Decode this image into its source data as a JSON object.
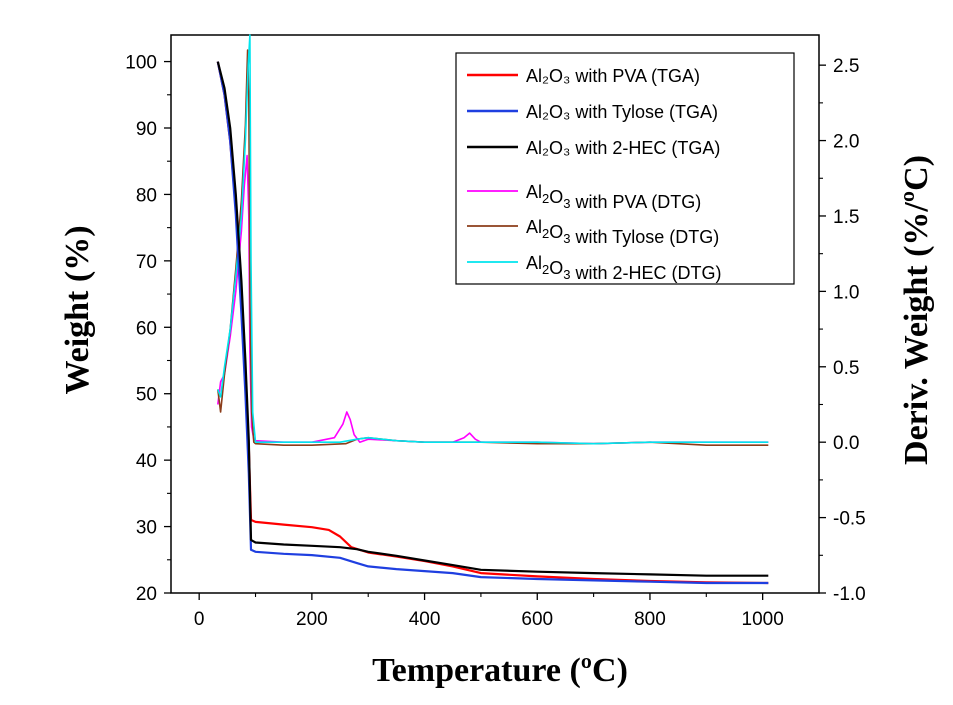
{
  "chart_data": {
    "type": "line",
    "xlabel": "Temperature (ºC)",
    "ylabel": "Weight (%)",
    "y2label": "Deriv. Weight (%/ºC)",
    "xlim": [
      -50,
      1100
    ],
    "ylim": [
      20,
      104
    ],
    "y2lim": [
      -1.0,
      2.7
    ],
    "x_ticks": [
      0,
      200,
      400,
      600,
      800,
      1000
    ],
    "y_ticks": [
      20,
      30,
      40,
      50,
      60,
      70,
      80,
      90,
      100
    ],
    "y2_ticks": [
      -1.0,
      -0.5,
      0.0,
      0.5,
      1.0,
      1.5,
      2.0,
      2.5
    ],
    "y2_tick_labels": [
      "-1.0",
      "-0.5",
      "0.0",
      "0.5",
      "1.0",
      "1.5",
      "2.0",
      "2.5"
    ],
    "legend_position": "top-right",
    "series": [
      {
        "name": "Al₂O₃ with PVA (TGA)",
        "axis": "left",
        "color": "#ff0000",
        "x": [
          33,
          45,
          55,
          65,
          75,
          82,
          88,
          92,
          100,
          150,
          200,
          230,
          250,
          270,
          300,
          350,
          400,
          450,
          500,
          600,
          700,
          800,
          900,
          1010
        ],
        "y": [
          100,
          95,
          88,
          78,
          64,
          52,
          42,
          31,
          30.7,
          30.3,
          29.9,
          29.5,
          28.5,
          26.9,
          26.1,
          25.5,
          24.8,
          24.0,
          23.0,
          22.5,
          22.1,
          21.8,
          21.6,
          21.5
        ]
      },
      {
        "name": "Al₂O₃ with Tylose (TGA)",
        "axis": "left",
        "color": "#1f3fe0",
        "x": [
          33,
          45,
          55,
          65,
          75,
          82,
          88,
          92,
          100,
          150,
          200,
          250,
          280,
          300,
          350,
          400,
          450,
          500,
          600,
          700,
          800,
          900,
          1010
        ],
        "y": [
          100,
          95,
          88,
          77,
          62,
          50,
          38,
          26.5,
          26.2,
          25.9,
          25.7,
          25.3,
          24.5,
          24.0,
          23.6,
          23.3,
          23.0,
          22.4,
          22.1,
          21.9,
          21.7,
          21.5,
          21.5
        ]
      },
      {
        "name": "Al₂O₃ with 2-HEC (TGA)",
        "axis": "left",
        "color": "#000000",
        "x": [
          33,
          45,
          55,
          65,
          75,
          82,
          88,
          92,
          100,
          150,
          200,
          250,
          280,
          300,
          350,
          400,
          450,
          500,
          600,
          700,
          800,
          900,
          1010
        ],
        "y": [
          100,
          96,
          90,
          80,
          67,
          55,
          43,
          28,
          27.6,
          27.3,
          27.1,
          26.9,
          26.6,
          26.2,
          25.6,
          24.9,
          24.2,
          23.5,
          23.2,
          23.0,
          22.8,
          22.6,
          22.6
        ]
      },
      {
        "name": "Al₂O₃ with PVA (DTG)",
        "axis": "right",
        "color": "#ff00ff",
        "x": [
          33,
          38,
          45,
          55,
          65,
          75,
          80,
          85,
          88,
          90,
          93,
          97,
          100,
          150,
          200,
          240,
          255,
          262,
          268,
          275,
          285,
          300,
          350,
          400,
          450,
          470,
          480,
          490,
          500,
          600,
          700,
          800,
          900,
          1010
        ],
        "y": [
          0.25,
          0.4,
          0.45,
          0.7,
          1.0,
          1.4,
          1.7,
          1.9,
          1.5,
          0.6,
          0.1,
          0.02,
          0.01,
          0.0,
          0.0,
          0.03,
          0.12,
          0.2,
          0.15,
          0.05,
          0.0,
          0.02,
          0.01,
          0.0,
          0.0,
          0.03,
          0.06,
          0.02,
          0.0,
          0.0,
          -0.01,
          0.0,
          0.0,
          0.0
        ]
      },
      {
        "name": "Al₂O₃ with Tylose (DTG)",
        "axis": "right",
        "color": "#8b3d1a",
        "x": [
          33,
          38,
          45,
          55,
          65,
          75,
          82,
          86,
          88,
          90,
          93,
          97,
          100,
          150,
          200,
          260,
          280,
          300,
          350,
          400,
          450,
          500,
          600,
          700,
          800,
          900,
          1010
        ],
        "y": [
          0.35,
          0.2,
          0.45,
          0.75,
          1.15,
          1.6,
          2.1,
          2.6,
          2.3,
          1.0,
          0.2,
          0.0,
          -0.01,
          -0.02,
          -0.02,
          -0.01,
          0.02,
          0.03,
          0.01,
          0.0,
          0.0,
          0.0,
          -0.01,
          -0.01,
          0.0,
          -0.02,
          -0.02
        ]
      },
      {
        "name": "Al₂O₃ with 2-HEC (DTG)",
        "axis": "right",
        "color": "#00e5ee",
        "x": [
          33,
          38,
          45,
          55,
          65,
          75,
          82,
          87,
          90,
          92,
          95,
          100,
          150,
          200,
          250,
          280,
          300,
          350,
          400,
          450,
          500,
          600,
          700,
          800,
          900,
          1010
        ],
        "y": [
          0.35,
          0.3,
          0.5,
          0.75,
          1.1,
          1.5,
          2.0,
          2.5,
          2.7,
          1.2,
          0.2,
          0.0,
          0.0,
          0.0,
          0.0,
          0.02,
          0.03,
          0.01,
          0.0,
          0.0,
          0.0,
          0.0,
          -0.01,
          0.0,
          0.0,
          0.0
        ]
      }
    ],
    "legend": {
      "tga_entries": [
        {
          "label": "Al₂O₃ with PVA (TGA)",
          "color": "#ff0000"
        },
        {
          "label": "Al₂O₃ with Tylose (TGA)",
          "color": "#1f3fe0"
        },
        {
          "label": "Al₂O₃ with 2-HEC (TGA)",
          "color": "#000000"
        }
      ],
      "dtg_entries": [
        {
          "pre": "Al",
          "sub1": "2",
          "mid": "O",
          "sub2": "3",
          "post": " with PVA (DTG)",
          "color": "#ff00ff"
        },
        {
          "pre": "Al",
          "sub1": "2",
          "mid": "O",
          "sub2": "3",
          "post": " with Tylose (DTG)",
          "color": "#8b3d1a"
        },
        {
          "pre": "Al",
          "sub1": "2",
          "mid": "O",
          "sub2": "3",
          "post": " with 2-HEC (DTG)",
          "color": "#00e5ee"
        }
      ]
    }
  }
}
